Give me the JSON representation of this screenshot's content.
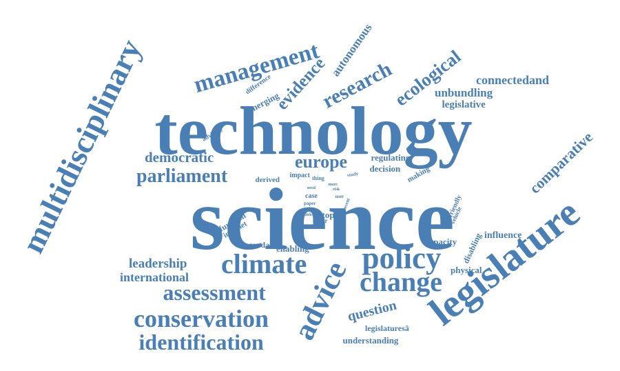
{
  "color": "#4a7fb5",
  "background": "#ffffff",
  "words": [
    "science",
    "technology",
    "legislature",
    "multidisciplinary",
    "management",
    "policy",
    "change",
    "advice",
    "climate",
    "conservation",
    "identification",
    "assessment",
    "research",
    "evidence",
    "ecological",
    "parliament",
    "europe",
    "democratic",
    "comparative",
    "leadership",
    "international",
    "question",
    "connectedand",
    "unbundling",
    "legislative",
    "autonomous",
    "emerging",
    "difference",
    "advisory",
    "regulating",
    "decision",
    "making",
    "derived",
    "impact",
    "thing",
    "study",
    "need",
    "case",
    "paper",
    "risk",
    "user",
    "more",
    "recent",
    "public",
    "cyber",
    "topic",
    "function",
    "internet",
    "agenda",
    "enabling",
    "capacity",
    "influence",
    "friendly",
    "vehicle",
    "disabling",
    "physical",
    "legislaturesâ",
    "understanding"
  ]
}
